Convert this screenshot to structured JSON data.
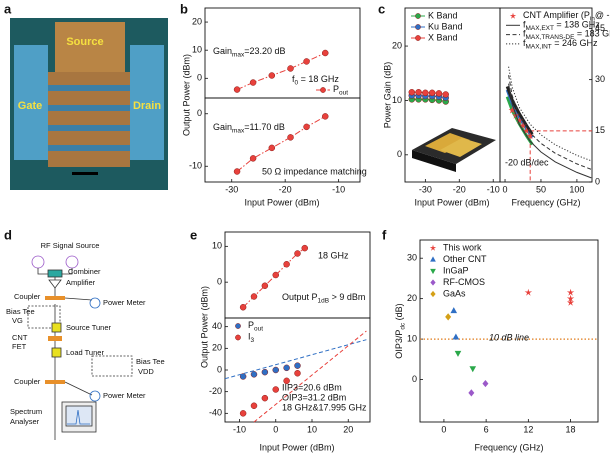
{
  "panel_labels": [
    "a",
    "b",
    "c",
    "d",
    "e",
    "f"
  ],
  "photo": {
    "labels": [
      "Gate",
      "Source",
      "Drain"
    ]
  },
  "diagram": {
    "labels": [
      "RF Signal Source",
      "Combiner",
      "Amplifier",
      "Coupler",
      "Power Meter",
      "Bias Tee",
      "VG",
      "Source Tuner",
      "CNT",
      "FET",
      "Load Tuner",
      "Bias Tee",
      "VDD",
      "Coupler",
      "Power Meter",
      "Spectrum",
      "Analyser"
    ]
  },
  "chart_data": [
    {
      "type": "scatter",
      "ylabel": "Output Power (dBm)",
      "xlim": [
        -35,
        -6
      ],
      "ylim": [
        -7,
        25
      ],
      "yticks": [
        0,
        10,
        20
      ],
      "legend": "lower right",
      "series": [
        {
          "name": [
            {
              "text": "P"
            },
            {
              "sub": "out"
            }
          ],
          "color": "#e8413c",
          "marker": "circle",
          "line": "dashdot",
          "x": [
            -29,
            -26,
            -22.5,
            -19,
            -16,
            -12.5
          ],
          "values": [
            -4,
            -1.5,
            1,
            3.5,
            6,
            9
          ]
        }
      ],
      "annotations": [
        [
          {
            "text": "Gain"
          },
          {
            "sub": "max"
          },
          {
            "text": "=23.20 dB"
          }
        ],
        [
          {
            "text": "f"
          },
          {
            "sub": "0"
          },
          {
            "text": " = 18 GHz"
          }
        ]
      ]
    },
    {
      "type": "scatter",
      "xlabel": "Input Power (dBm)",
      "xlim": [
        -35,
        -6
      ],
      "xticks": [
        -30,
        -20,
        -10
      ],
      "ylim": [
        -13,
        3
      ],
      "yticks": [
        -10,
        0
      ],
      "series": [
        {
          "color": "#e8413c",
          "marker": "circle",
          "line": "dashdot",
          "x": [
            -29,
            -26,
            -22.5,
            -19,
            -16,
            -12.5
          ],
          "values": [
            -11,
            -8.5,
            -6.5,
            -4.5,
            -2.5,
            -0.5
          ]
        }
      ],
      "annotations": [
        [
          {
            "text": "Gain"
          },
          {
            "sub": "max"
          },
          {
            "text": "=11.70 dB"
          }
        ],
        "50 Ω impedance matching"
      ]
    },
    {
      "type": "scatter",
      "ylabel": "Power Gain (dB)",
      "xlabel": "Input Power (dBm)",
      "xlim": [
        -36,
        -8
      ],
      "xticks": [
        -30,
        -20,
        -10
      ],
      "ylim": [
        -5,
        27
      ],
      "yticks": [
        0,
        10,
        20
      ],
      "legend": "upper left",
      "series": [
        {
          "name": "K Band",
          "color": "#2aa84a",
          "marker": "circle",
          "line": "solid",
          "x": [
            -34,
            -32,
            -30,
            -28,
            -26,
            -24
          ],
          "values": [
            10.2,
            10.2,
            10.2,
            10.1,
            10,
            9.8
          ]
        },
        {
          "name": "Ku Band",
          "color": "#2f6fc4",
          "marker": "circle",
          "line": "solid",
          "x": [
            -34,
            -32,
            -30,
            -28,
            -26,
            -24
          ],
          "values": [
            10.9,
            10.9,
            10.8,
            10.8,
            10.7,
            10.5
          ]
        },
        {
          "name": "X Band",
          "color": "#e8413c",
          "marker": "circle",
          "line": "solid",
          "x": [
            -34,
            -32,
            -30,
            -28,
            -26,
            -24
          ],
          "values": [
            11.5,
            11.5,
            11.4,
            11.4,
            11.3,
            11.1
          ]
        }
      ]
    },
    {
      "type": "line",
      "xlabel": "Frequency (GHz)",
      "xlim": [
        -7,
        121
      ],
      "xticks": [
        0,
        50,
        100
      ],
      "ylim": [
        0,
        51
      ],
      "yticks": [
        0,
        15,
        30,
        45
      ],
      "y_axis_side": "right",
      "legend": "upper left",
      "ref": {
        "x": 35,
        "y": 15,
        "color": "#e8413c"
      },
      "series": [
        {
          "color": "#2aa84a",
          "line": "solid",
          "width": 3,
          "x": [
            3,
            10,
            20,
            30,
            38
          ],
          "values": [
            25,
            21,
            17,
            13.5,
            11
          ]
        },
        {
          "color": "#2f6fc4",
          "line": "solid",
          "width": 3,
          "x": [
            3,
            10,
            20,
            30,
            38
          ],
          "values": [
            27,
            23,
            19,
            15.5,
            13
          ]
        },
        {
          "color": "#222222",
          "line": "solid",
          "width": 3,
          "x": [
            3,
            10,
            20,
            30,
            38
          ],
          "values": [
            28,
            24,
            20,
            16.5,
            14
          ]
        },
        {
          "name": [
            {
              "text": "CNT Amplifier ("
            },
            {
              "text": "P"
            },
            {
              "sub": "in"
            },
            {
              "text": "@ -25 dBm)"
            }
          ],
          "color": "#e8413c",
          "marker": "star",
          "x": [
            10,
            15,
            20,
            25,
            30,
            35
          ],
          "values": [
            21,
            19.5,
            18,
            16.5,
            15,
            13.5
          ]
        },
        {
          "name": [
            {
              "text": "f"
            },
            {
              "sub": "MAX,EXT"
            },
            {
              "text": " = 138 GHz"
            }
          ],
          "color": "#333333",
          "line": "solid",
          "x": [
            5,
            10,
            20,
            35,
            50,
            70,
            100,
            120
          ],
          "values": [
            28.8,
            22.8,
            16.8,
            11.9,
            8.8,
            5.9,
            2.8,
            1.2
          ]
        },
        {
          "name": [
            {
              "text": "f"
            },
            {
              "sub": "MAX,TRANS-DE"
            },
            {
              "text": " = 183 GHz"
            }
          ],
          "color": "#333333",
          "line": "dashed",
          "x": [
            5,
            10,
            20,
            35,
            50,
            70,
            100,
            120
          ],
          "values": [
            31.3,
            25.3,
            19.3,
            14.4,
            11.3,
            8.4,
            5.3,
            3.7
          ]
        },
        {
          "name": [
            {
              "text": "f"
            },
            {
              "sub": "MAX,INT"
            },
            {
              "text": " = 246 GHz"
            }
          ],
          "color": "#333333",
          "line": "dotted",
          "x": [
            5,
            10,
            20,
            35,
            50,
            70,
            100,
            120
          ],
          "values": [
            33.8,
            27.8,
            21.8,
            16.9,
            13.8,
            10.9,
            7.8,
            6.2
          ]
        }
      ],
      "annotations": [
        "-20 dB/dec"
      ]
    },
    {
      "type": "scatter",
      "ylabel": "Output Power (dBm)",
      "xlim": [
        -14,
        26
      ],
      "ylim": [
        -10,
        14
      ],
      "yticks": [
        0,
        10
      ],
      "series": [
        {
          "color": "#e8413c",
          "marker": "circle",
          "line": "dashdot",
          "x": [
            -9,
            -6,
            -3,
            0,
            3,
            6,
            8
          ],
          "values": [
            -7,
            -4,
            -1,
            2,
            5,
            8,
            9.5
          ]
        }
      ],
      "annotations": [
        "18 GHz",
        [
          {
            "text": "Output "
          },
          {
            "text": "P"
          },
          {
            "sub": "1dB"
          },
          {
            "text": " > 9 dBm"
          }
        ]
      ]
    },
    {
      "type": "scatter",
      "xlabel": "Input Power (dBm)",
      "xlim": [
        -14,
        26
      ],
      "xticks": [
        -10,
        0,
        10,
        20
      ],
      "ylim": [
        -48,
        48
      ],
      "yticks": [
        -40,
        -20,
        0,
        20,
        40
      ],
      "legend": "upper left",
      "series": [
        {
          "name": [
            {
              "text": "P"
            },
            {
              "sub": "out"
            }
          ],
          "color": "#2f6fc4",
          "marker": "circle",
          "x": [
            -9,
            -6,
            -3,
            0,
            3,
            6
          ],
          "values": [
            -6,
            -4,
            -2,
            0,
            2,
            4
          ]
        },
        {
          "name": [
            {
              "text": "I"
            },
            {
              "sub": "3"
            }
          ],
          "color": "#e8413c",
          "marker": "circle",
          "x": [
            -9,
            -6,
            -3,
            0,
            3,
            6
          ],
          "values": [
            -40,
            -33,
            -26,
            -18,
            -10,
            -3
          ]
        },
        {
          "color": "#2f6fc4",
          "line": "dashed",
          "x": [
            -14,
            25
          ],
          "values": [
            -8,
            28
          ]
        },
        {
          "color": "#e8413c",
          "line": "dashed",
          "x": [
            -6,
            25
          ],
          "values": [
            -48,
            36
          ]
        }
      ],
      "annotations": [
        "IIP3=20.6 dBm",
        "OIP3=31.2 dBm",
        "18 GHz&17.995 GHz"
      ]
    },
    {
      "type": "scatter",
      "ylabel": [
        {
          "text": "OIP3/"
        },
        {
          "text": "P"
        },
        {
          "sub": "dc"
        },
        {
          "text": " (dB)"
        }
      ],
      "xlabel": "Frequency (GHz)",
      "xlim": [
        -3.4,
        21.9
      ],
      "xticks": [
        0,
        6,
        12,
        18
      ],
      "ylim": [
        -10.5,
        34.5
      ],
      "yticks": [
        0,
        10,
        20,
        30
      ],
      "legend": "upper left",
      "hline": {
        "y": 10,
        "label": "10 dB line",
        "color": "#e07b1a"
      },
      "series": [
        {
          "name": "This work",
          "color": "#e8413c",
          "marker": "star",
          "x": [
            12,
            18,
            18,
            18
          ],
          "values": [
            21.5,
            21.5,
            20,
            19
          ]
        },
        {
          "name": "Other CNT",
          "color": "#2f6fc4",
          "marker": "triangle",
          "x": [
            1.4,
            1.7
          ],
          "values": [
            17,
            10.5
          ]
        },
        {
          "name": "InGaP",
          "color": "#2aa84a",
          "marker": "triangle-down",
          "x": [
            2,
            4.1
          ],
          "values": [
            6.5,
            2.7
          ]
        },
        {
          "name": "RF-CMOS",
          "color": "#9b59c9",
          "marker": "diamond",
          "x": [
            3.9,
            5.9
          ],
          "values": [
            -3.3,
            -1
          ]
        },
        {
          "name": "GaAs",
          "color": "#d4a017",
          "marker": "diamond",
          "x": [
            0.6
          ],
          "values": [
            15.5
          ]
        }
      ]
    }
  ]
}
